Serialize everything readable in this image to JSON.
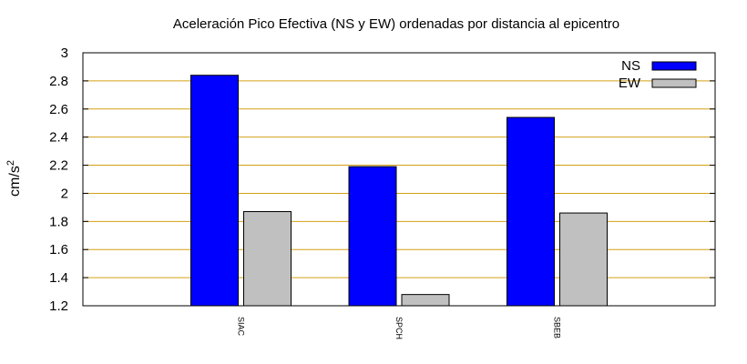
{
  "chart_data": {
    "type": "bar",
    "title": "Aceleración Pico Efectiva (NS y EW) ordenadas por distancia al epicentro",
    "ylabel": "cm/s",
    "ylabel_superscript": "2",
    "xlabel": "",
    "categories": [
      "SIAC",
      "SPCH",
      "SBEB"
    ],
    "series": [
      {
        "name": "NS",
        "values": [
          2.84,
          2.19,
          2.54
        ],
        "color": "#0000ff"
      },
      {
        "name": "EW",
        "values": [
          1.87,
          1.28,
          1.86
        ],
        "color": "#c0c0c0"
      }
    ],
    "ylim": [
      1.2,
      3.0
    ],
    "yticks": [
      "1.2",
      "1.4",
      "1.6",
      "1.8",
      "2",
      "2.2",
      "2.4",
      "2.6",
      "2.8",
      "3"
    ],
    "grid": true,
    "grid_color": "#d4a017",
    "legend_position": "top-right"
  }
}
